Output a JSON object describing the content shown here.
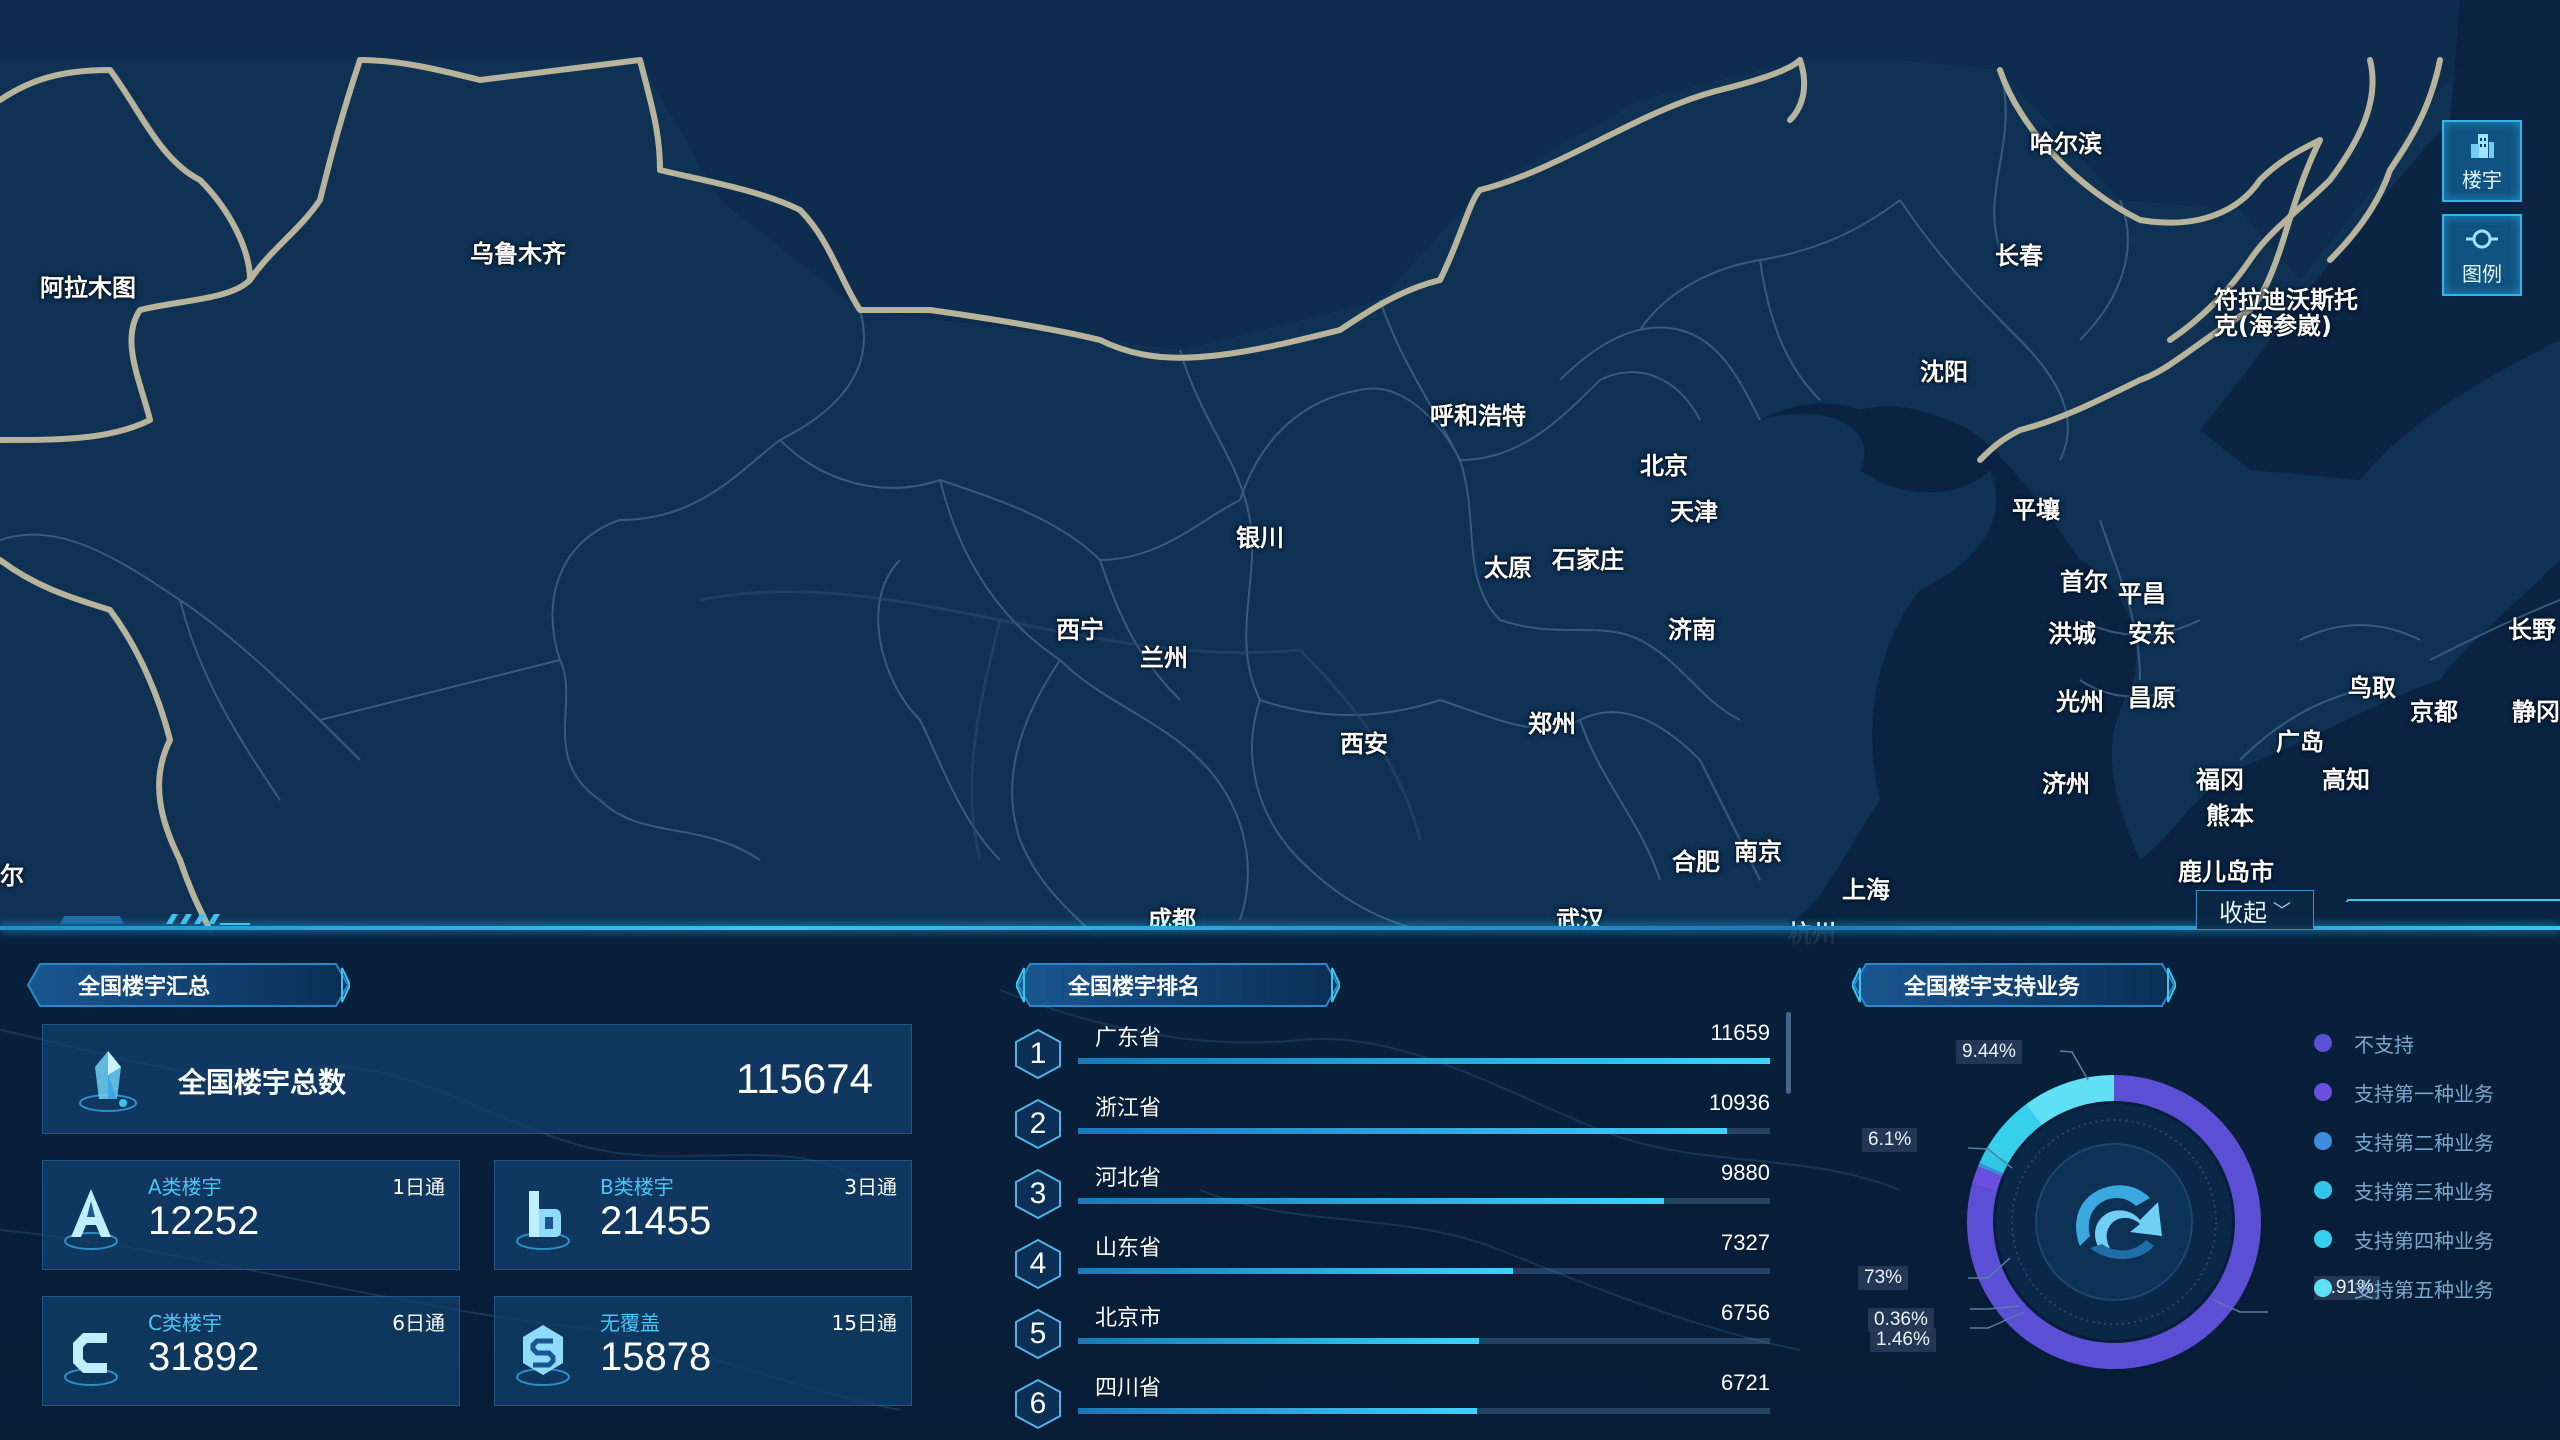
{
  "map": {
    "cities": [
      {
        "name": "哈尔滨"
      },
      {
        "name": "乌鲁木齐"
      },
      {
        "name": "阿拉木图"
      },
      {
        "name": "长春"
      },
      {
        "name": "符拉迪沃斯托克(海参崴)"
      },
      {
        "name": "沈阳"
      },
      {
        "name": "呼和浩特"
      },
      {
        "name": "北京"
      },
      {
        "name": "天津"
      },
      {
        "name": "银川"
      },
      {
        "name": "太原"
      },
      {
        "name": "石家庄"
      },
      {
        "name": "平壤"
      },
      {
        "name": "首尔"
      },
      {
        "name": "平昌"
      },
      {
        "name": "洪城"
      },
      {
        "name": "安东"
      },
      {
        "name": "西宁"
      },
      {
        "name": "兰州"
      },
      {
        "name": "济南"
      },
      {
        "name": "光州"
      },
      {
        "name": "昌原"
      },
      {
        "name": "长野"
      },
      {
        "name": "鸟取"
      },
      {
        "name": "京都"
      },
      {
        "name": "静冈"
      },
      {
        "name": "郑州"
      },
      {
        "name": "西安"
      },
      {
        "name": "广岛"
      },
      {
        "name": "福冈"
      },
      {
        "name": "高知"
      },
      {
        "name": "济州"
      },
      {
        "name": "熊本"
      },
      {
        "name": "合肥"
      },
      {
        "name": "南京"
      },
      {
        "name": "鹿儿岛市"
      },
      {
        "name": "上海"
      },
      {
        "name": "成都"
      },
      {
        "name": "武汉"
      },
      {
        "name": "杭州"
      },
      {
        "name": "尔"
      }
    ]
  },
  "toolbar": {
    "building_label": "楼宇",
    "legend_label": "图例"
  },
  "collapse": {
    "label": "收起",
    "chevron": "﹀"
  },
  "summary": {
    "title": "全国楼宇汇总",
    "total_label": "全国楼宇总数",
    "total_value": "115674",
    "cards": [
      {
        "label": "A类楼宇",
        "tag": "1日通",
        "value": "12252",
        "icon": "a-class-building-icon"
      },
      {
        "label": "B类楼宇",
        "tag": "3日通",
        "value": "21455",
        "icon": "b-class-building-icon"
      },
      {
        "label": "C类楼宇",
        "tag": "6日通",
        "value": "31892",
        "icon": "c-class-building-icon"
      },
      {
        "label": "无覆盖",
        "tag": "15日通",
        "value": "15878",
        "icon": "no-coverage-icon"
      }
    ]
  },
  "ranking": {
    "title": "全国楼宇排名",
    "rows": [
      {
        "rank": "1",
        "name": "广东省",
        "value": 11659,
        "value_text": "11659"
      },
      {
        "rank": "2",
        "name": "浙江省",
        "value": 10936,
        "value_text": "10936"
      },
      {
        "rank": "3",
        "name": "河北省",
        "value": 9880,
        "value_text": "9880"
      },
      {
        "rank": "4",
        "name": "山东省",
        "value": 7327,
        "value_text": "7327"
      },
      {
        "rank": "5",
        "name": "北京市",
        "value": 6756,
        "value_text": "6756"
      },
      {
        "rank": "6",
        "name": "四川省",
        "value": 6721,
        "value_text": "6721"
      }
    ],
    "max": 11659
  },
  "business": {
    "title": "全国楼宇支持业务",
    "legend": [
      {
        "name": "不支持",
        "color": "#5b4fd6"
      },
      {
        "name": "支持第一种业务",
        "color": "#6a4fe0"
      },
      {
        "name": "支持第二种业务",
        "color": "#3d8de0"
      },
      {
        "name": "支持第三种业务",
        "color": "#2fc6e8"
      },
      {
        "name": "支持第四种业务",
        "color": "#35d0ee"
      },
      {
        "name": "支持第五种业务",
        "color": "#5fe0f5"
      }
    ],
    "labels": [
      "9.44%",
      "6.1%",
      "73%",
      "0.36%",
      "1.46%",
      "1.91%"
    ]
  },
  "chart_data": {
    "type": "pie",
    "title": "全国楼宇支持业务",
    "categories": [
      "不支持",
      "支持第一种业务",
      "支持第二种业务",
      "支持第三种业务",
      "支持第四种业务",
      "支持第五种业务"
    ],
    "values": [
      73,
      1.91,
      0.36,
      1.46,
      6.1,
      9.44
    ],
    "colors": [
      "#5b4fd6",
      "#6a4fe0",
      "#3d8de0",
      "#2fc6e8",
      "#35d0ee",
      "#5fe0f5"
    ],
    "legend": "right"
  }
}
